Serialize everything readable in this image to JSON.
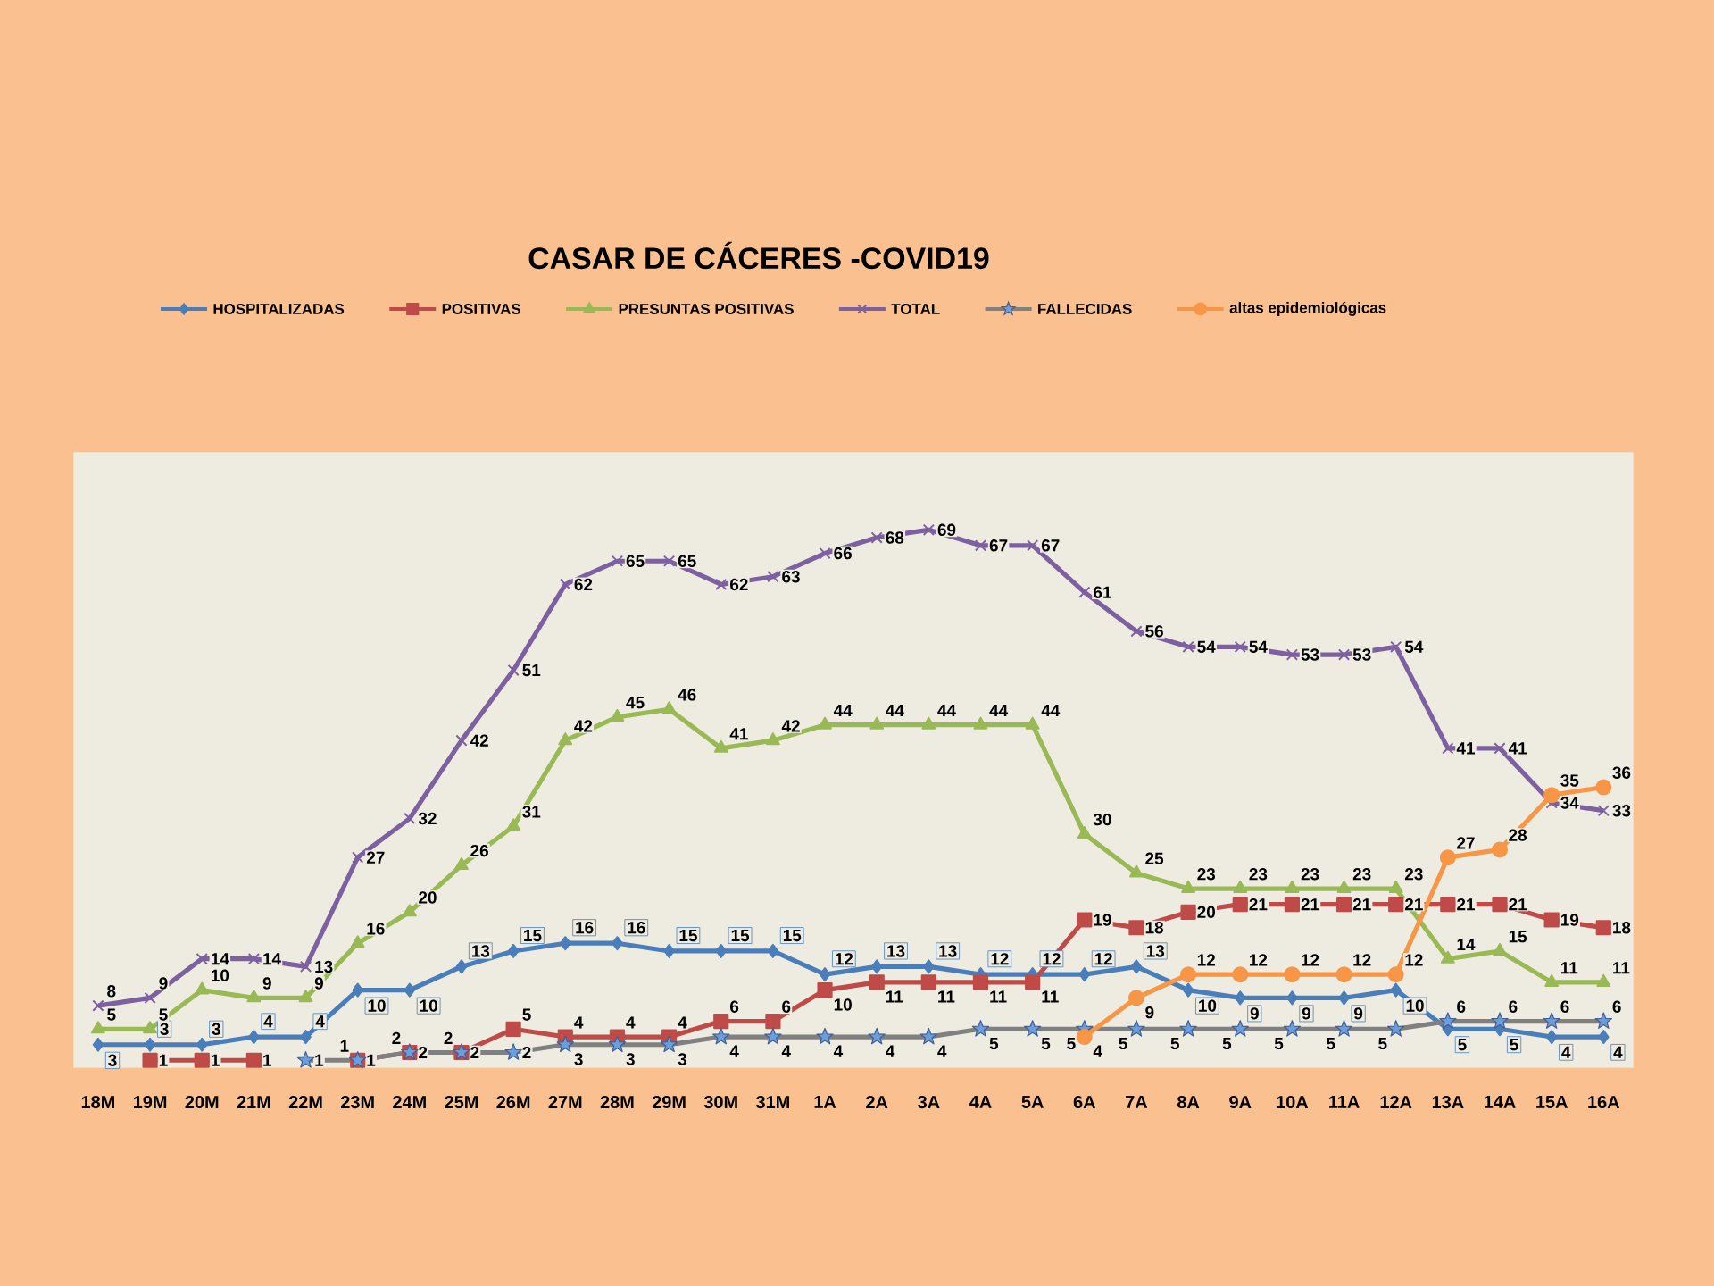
{
  "chart_data": {
    "type": "line",
    "title": "CASAR DE CÁCERES -COVID19",
    "categories": [
      "18M",
      "19M",
      "20M",
      "21M",
      "22M",
      "23M",
      "24M",
      "25M",
      "26M",
      "27M",
      "28M",
      "29M",
      "30M",
      "31M",
      "1A",
      "2A",
      "3A",
      "4A",
      "5A",
      "6A",
      "7A",
      "8A",
      "9A",
      "10A",
      "11A",
      "12A",
      "13A",
      "14A",
      "15A",
      "16A"
    ],
    "ylim": [
      0,
      79
    ],
    "tick_labels": "x",
    "legend": "top",
    "data_labels": true,
    "series": [
      {
        "name": "HOSPITALIZADAS",
        "color": "#4a7ebb",
        "marker": "diamond",
        "values": [
          3,
          3,
          3,
          4,
          4,
          10,
          10,
          13,
          15,
          16,
          16,
          15,
          15,
          15,
          12,
          13,
          13,
          12,
          12,
          12,
          13,
          10,
          9,
          9,
          9,
          10,
          5,
          5,
          4,
          4
        ]
      },
      {
        "name": "POSITIVAS",
        "color": "#be4b48",
        "marker": "square",
        "values": [
          null,
          1,
          1,
          1,
          null,
          1,
          2,
          2,
          5,
          4,
          4,
          4,
          6,
          6,
          10,
          11,
          11,
          11,
          11,
          19,
          18,
          20,
          21,
          21,
          21,
          21,
          21,
          21,
          19,
          18
        ]
      },
      {
        "name": "PRESUNTAS POSITIVAS",
        "color": "#98b954",
        "marker": "triangle",
        "values": [
          5,
          5,
          10,
          9,
          9,
          16,
          20,
          26,
          31,
          42,
          45,
          46,
          41,
          42,
          44,
          44,
          44,
          44,
          44,
          30,
          25,
          23,
          23,
          23,
          23,
          23,
          14,
          15,
          11,
          11
        ]
      },
      {
        "name": "TOTAL",
        "color": "#7d60a0",
        "marker": "cross",
        "values": [
          8,
          9,
          14,
          14,
          13,
          27,
          32,
          42,
          51,
          62,
          65,
          65,
          62,
          63,
          66,
          68,
          69,
          67,
          67,
          61,
          56,
          54,
          54,
          53,
          53,
          54,
          41,
          41,
          34,
          33
        ]
      },
      {
        "name": "FALLECIDAS",
        "color": "#808080",
        "marker": "star",
        "values": [
          null,
          null,
          null,
          null,
          1,
          1,
          2,
          2,
          2,
          3,
          3,
          3,
          4,
          4,
          4,
          4,
          4,
          5,
          5,
          5,
          5,
          5,
          5,
          5,
          5,
          5,
          6,
          6,
          6,
          6
        ]
      },
      {
        "name": "altas epidemiológicas",
        "color": "#f79646",
        "marker": "circle",
        "values": [
          null,
          null,
          null,
          null,
          null,
          null,
          null,
          null,
          null,
          null,
          null,
          null,
          null,
          null,
          null,
          null,
          null,
          null,
          null,
          4,
          9,
          12,
          12,
          12,
          12,
          12,
          27,
          28,
          35,
          36
        ]
      }
    ]
  }
}
